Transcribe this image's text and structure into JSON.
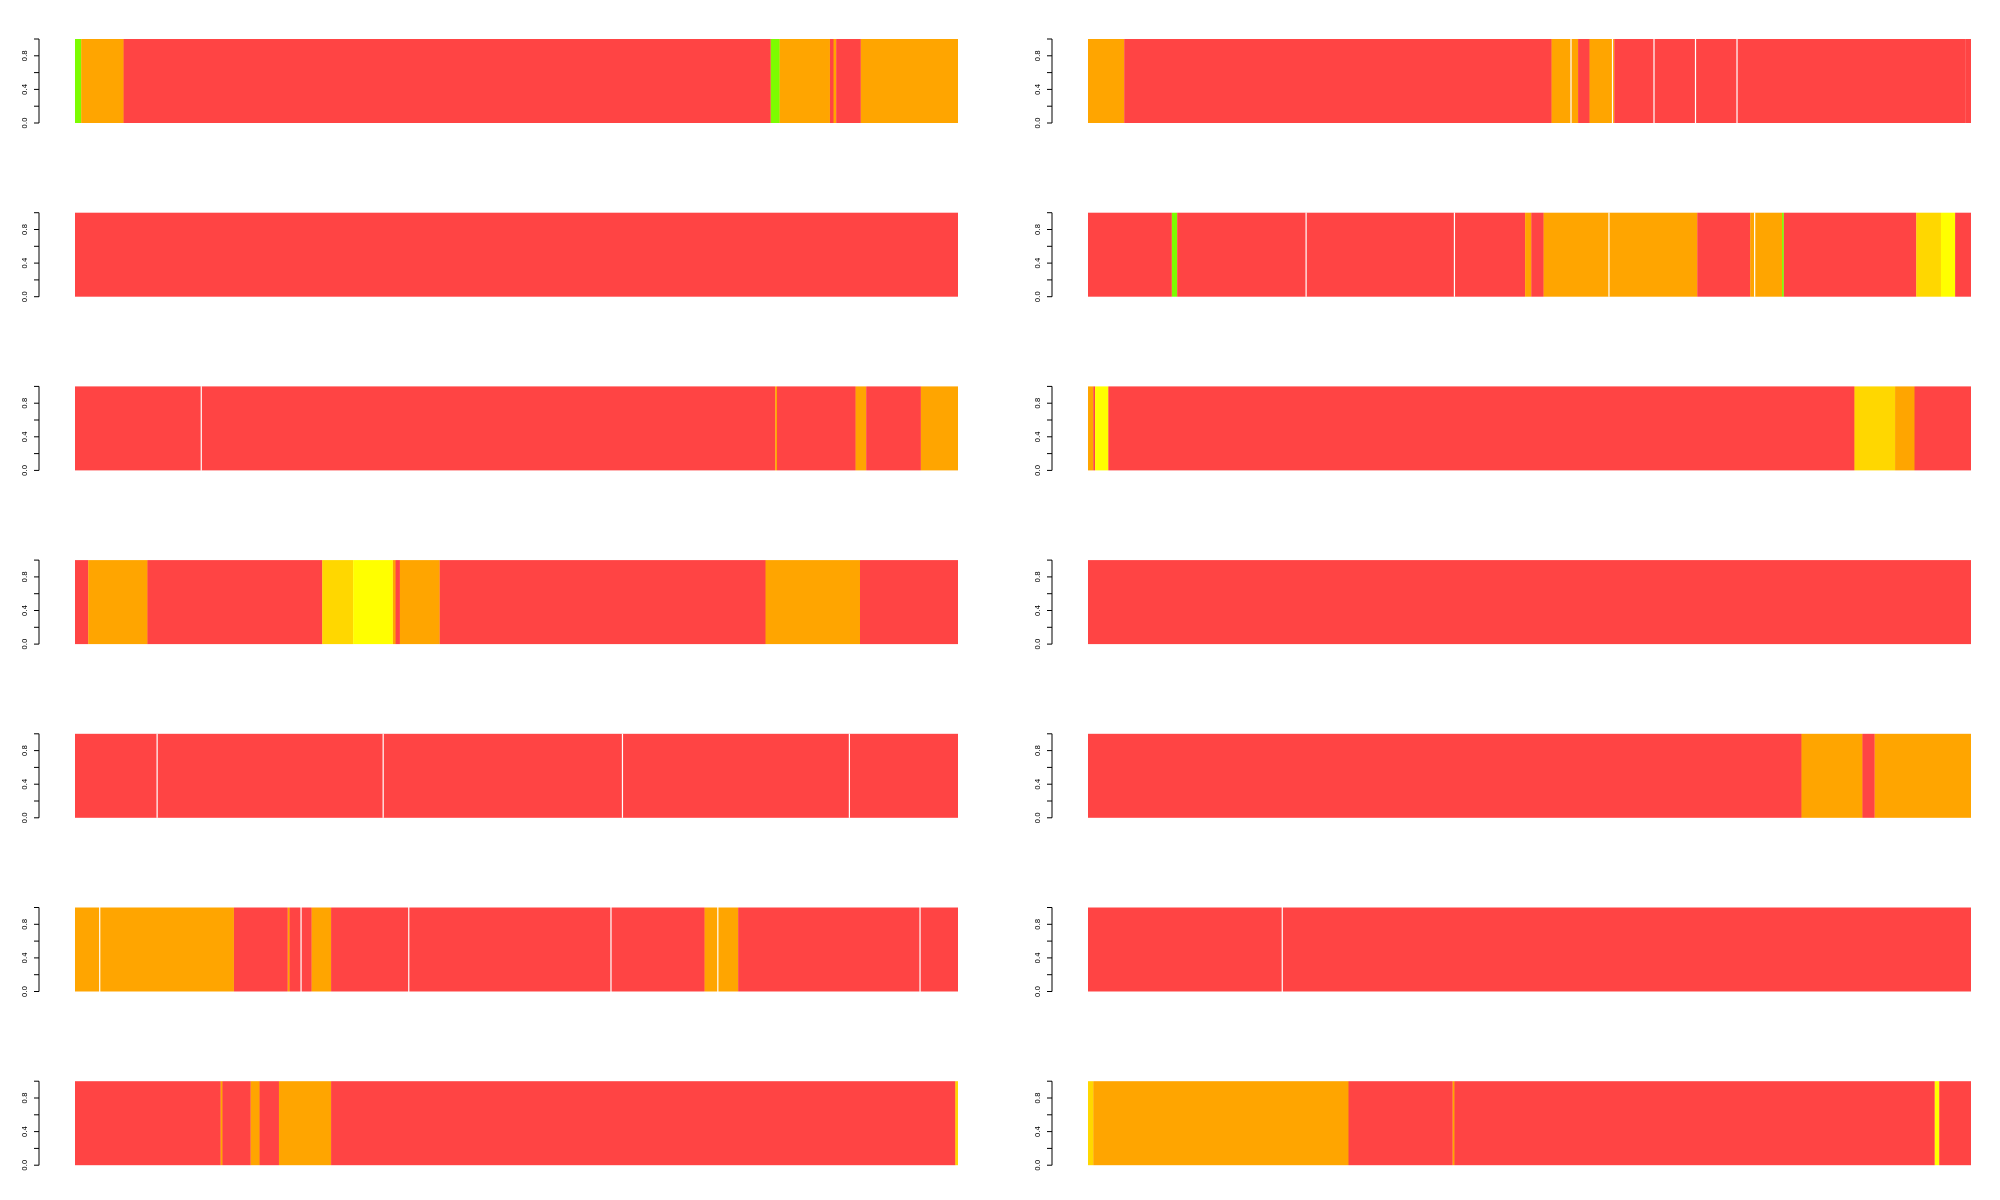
{
  "figure": {
    "colors": {
      "red": "#ff4444",
      "orange": "#ffa500",
      "gold": "#ffd700",
      "yellow": "#ffff00",
      "green": "#7cfc00",
      "separator": "#ffffff",
      "axis": "#000000"
    },
    "y_tick_labels": [
      "0.0",
      "0.4",
      "0.8"
    ]
  },
  "chart_data": [
    {
      "type": "bar",
      "panel": "row-1-left",
      "ylim": [
        0,
        1
      ],
      "yticks": [
        0,
        0.2,
        0.4,
        0.6,
        0.8,
        1.0
      ],
      "ytick_labels": [
        "0.0",
        "0.4",
        "0.8"
      ],
      "segments": [
        {
          "start": 0.0,
          "end": 0.007,
          "color": "green"
        },
        {
          "start": 0.007,
          "end": 0.055,
          "color": "orange"
        },
        {
          "start": 0.055,
          "end": 0.788,
          "color": "red"
        },
        {
          "start": 0.788,
          "end": 0.798,
          "color": "green"
        },
        {
          "start": 0.798,
          "end": 0.855,
          "color": "orange"
        },
        {
          "start": 0.855,
          "end": 0.859,
          "color": "red"
        },
        {
          "start": 0.859,
          "end": 0.862,
          "color": "orange"
        },
        {
          "start": 0.862,
          "end": 0.89,
          "color": "red"
        },
        {
          "start": 0.89,
          "end": 1.0,
          "color": "orange"
        }
      ]
    },
    {
      "type": "bar",
      "panel": "row-1-right",
      "ylim": [
        0,
        1
      ],
      "yticks": [
        0,
        0.2,
        0.4,
        0.6,
        0.8,
        1.0
      ],
      "ytick_labels": [
        "0.0",
        "0.4",
        "0.8"
      ],
      "segments": [
        {
          "start": 0.0,
          "end": 0.041,
          "color": "orange"
        },
        {
          "start": 0.041,
          "end": 0.525,
          "color": "red"
        },
        {
          "start": 0.525,
          "end": 0.555,
          "color": "orange"
        },
        {
          "start": 0.555,
          "end": 0.568,
          "color": "red"
        },
        {
          "start": 0.568,
          "end": 0.596,
          "color": "orange"
        },
        {
          "start": 0.596,
          "end": 0.994,
          "color": "red"
        },
        {
          "start": 0.994,
          "end": 1.0,
          "color": "red"
        }
      ],
      "separators": [
        0.547,
        0.594,
        0.641,
        0.688,
        0.735
      ]
    },
    {
      "type": "bar",
      "panel": "row-2-left",
      "ylim": [
        0,
        1
      ],
      "yticks": [
        0,
        0.2,
        0.4,
        0.6,
        0.8,
        1.0
      ],
      "ytick_labels": [
        "0.0",
        "0.4",
        "0.8"
      ],
      "segments": [
        {
          "start": 0.0,
          "end": 1.0,
          "color": "red"
        }
      ]
    },
    {
      "type": "bar",
      "panel": "row-2-right",
      "ylim": [
        0,
        1
      ],
      "yticks": [
        0,
        0.2,
        0.4,
        0.6,
        0.8,
        1.0
      ],
      "ytick_labels": [
        "0.0",
        "0.4",
        "0.8"
      ],
      "segments": [
        {
          "start": 0.0,
          "end": 0.095,
          "color": "red"
        },
        {
          "start": 0.095,
          "end": 0.101,
          "color": "green"
        },
        {
          "start": 0.101,
          "end": 0.495,
          "color": "red"
        },
        {
          "start": 0.495,
          "end": 0.502,
          "color": "orange"
        },
        {
          "start": 0.502,
          "end": 0.516,
          "color": "red"
        },
        {
          "start": 0.516,
          "end": 0.69,
          "color": "orange"
        },
        {
          "start": 0.69,
          "end": 0.75,
          "color": "red"
        },
        {
          "start": 0.75,
          "end": 0.786,
          "color": "orange"
        },
        {
          "start": 0.786,
          "end": 0.788,
          "color": "green"
        },
        {
          "start": 0.788,
          "end": 0.938,
          "color": "red"
        },
        {
          "start": 0.938,
          "end": 0.966,
          "color": "gold"
        },
        {
          "start": 0.966,
          "end": 0.982,
          "color": "yellow"
        },
        {
          "start": 0.982,
          "end": 1.0,
          "color": "red"
        }
      ],
      "separators": [
        0.247,
        0.415,
        0.59,
        0.755
      ]
    },
    {
      "type": "bar",
      "panel": "row-3-left",
      "ylim": [
        0,
        1
      ],
      "yticks": [
        0,
        0.2,
        0.4,
        0.6,
        0.8,
        1.0
      ],
      "ytick_labels": [
        "0.0",
        "0.4",
        "0.8"
      ],
      "segments": [
        {
          "start": 0.0,
          "end": 0.793,
          "color": "red"
        },
        {
          "start": 0.793,
          "end": 0.795,
          "color": "orange"
        },
        {
          "start": 0.795,
          "end": 0.884,
          "color": "red"
        },
        {
          "start": 0.884,
          "end": 0.896,
          "color": "orange"
        },
        {
          "start": 0.896,
          "end": 0.958,
          "color": "red"
        },
        {
          "start": 0.958,
          "end": 1.0,
          "color": "orange"
        }
      ],
      "separators": [
        0.143
      ]
    },
    {
      "type": "bar",
      "panel": "row-3-right",
      "ylim": [
        0,
        1
      ],
      "yticks": [
        0,
        0.2,
        0.4,
        0.6,
        0.8,
        1.0
      ],
      "ytick_labels": [
        "0.0",
        "0.4",
        "0.8"
      ],
      "segments": [
        {
          "start": 0.0,
          "end": 0.006,
          "color": "orange"
        },
        {
          "start": 0.006,
          "end": 0.008,
          "color": "red"
        },
        {
          "start": 0.008,
          "end": 0.023,
          "color": "yellow"
        },
        {
          "start": 0.023,
          "end": 0.868,
          "color": "red"
        },
        {
          "start": 0.868,
          "end": 0.914,
          "color": "gold"
        },
        {
          "start": 0.914,
          "end": 0.936,
          "color": "orange"
        },
        {
          "start": 0.936,
          "end": 1.0,
          "color": "red"
        }
      ]
    },
    {
      "type": "bar",
      "panel": "row-4-left",
      "ylim": [
        0,
        1
      ],
      "yticks": [
        0,
        0.2,
        0.4,
        0.6,
        0.8,
        1.0
      ],
      "ytick_labels": [
        "0.0",
        "0.4",
        "0.8"
      ],
      "segments": [
        {
          "start": 0.0,
          "end": 0.015,
          "color": "red"
        },
        {
          "start": 0.015,
          "end": 0.082,
          "color": "orange"
        },
        {
          "start": 0.082,
          "end": 0.28,
          "color": "red"
        },
        {
          "start": 0.28,
          "end": 0.315,
          "color": "gold"
        },
        {
          "start": 0.315,
          "end": 0.36,
          "color": "yellow"
        },
        {
          "start": 0.36,
          "end": 0.363,
          "color": "orange"
        },
        {
          "start": 0.363,
          "end": 0.368,
          "color": "red"
        },
        {
          "start": 0.368,
          "end": 0.413,
          "color": "orange"
        },
        {
          "start": 0.413,
          "end": 0.782,
          "color": "red"
        },
        {
          "start": 0.782,
          "end": 0.889,
          "color": "orange"
        },
        {
          "start": 0.889,
          "end": 1.0,
          "color": "red"
        }
      ]
    },
    {
      "type": "bar",
      "panel": "row-4-right",
      "ylim": [
        0,
        1
      ],
      "yticks": [
        0,
        0.2,
        0.4,
        0.6,
        0.8,
        1.0
      ],
      "ytick_labels": [
        "0.0",
        "0.4",
        "0.8"
      ],
      "segments": [
        {
          "start": 0.0,
          "end": 1.0,
          "color": "red"
        }
      ]
    },
    {
      "type": "bar",
      "panel": "row-5-left",
      "ylim": [
        0,
        1
      ],
      "yticks": [
        0,
        0.2,
        0.4,
        0.6,
        0.8,
        1.0
      ],
      "ytick_labels": [
        "0.0",
        "0.4",
        "0.8"
      ],
      "segments": [
        {
          "start": 0.0,
          "end": 1.0,
          "color": "red"
        }
      ],
      "separators": [
        0.093,
        0.349,
        0.62,
        0.877
      ]
    },
    {
      "type": "bar",
      "panel": "row-5-right",
      "ylim": [
        0,
        1
      ],
      "yticks": [
        0,
        0.2,
        0.4,
        0.6,
        0.8,
        1.0
      ],
      "ytick_labels": [
        "0.0",
        "0.4",
        "0.8"
      ],
      "segments": [
        {
          "start": 0.0,
          "end": 0.808,
          "color": "red"
        },
        {
          "start": 0.808,
          "end": 0.877,
          "color": "orange"
        },
        {
          "start": 0.877,
          "end": 0.891,
          "color": "red"
        },
        {
          "start": 0.891,
          "end": 1.0,
          "color": "orange"
        }
      ]
    },
    {
      "type": "bar",
      "panel": "row-6-left",
      "ylim": [
        0,
        1
      ],
      "yticks": [
        0,
        0.2,
        0.4,
        0.6,
        0.8,
        1.0
      ],
      "ytick_labels": [
        "0.0",
        "0.4",
        "0.8"
      ],
      "segments": [
        {
          "start": 0.0,
          "end": 0.18,
          "color": "orange"
        },
        {
          "start": 0.18,
          "end": 0.241,
          "color": "red"
        },
        {
          "start": 0.241,
          "end": 0.243,
          "color": "orange"
        },
        {
          "start": 0.243,
          "end": 0.256,
          "color": "red"
        },
        {
          "start": 0.256,
          "end": 0.268,
          "color": "red"
        },
        {
          "start": 0.268,
          "end": 0.29,
          "color": "orange"
        },
        {
          "start": 0.29,
          "end": 0.713,
          "color": "red"
        },
        {
          "start": 0.713,
          "end": 0.751,
          "color": "orange"
        },
        {
          "start": 0.751,
          "end": 1.0,
          "color": "red"
        }
      ],
      "separators": [
        0.028,
        0.256,
        0.378,
        0.607,
        0.728,
        0.957
      ]
    },
    {
      "type": "bar",
      "panel": "row-6-right",
      "ylim": [
        0,
        1
      ],
      "yticks": [
        0,
        0.2,
        0.4,
        0.6,
        0.8,
        1.0
      ],
      "ytick_labels": [
        "0.0",
        "0.4",
        "0.8"
      ],
      "segments": [
        {
          "start": 0.0,
          "end": 1.0,
          "color": "red"
        }
      ],
      "separators": [
        0.22
      ]
    },
    {
      "type": "bar",
      "panel": "row-7-left",
      "ylim": [
        0,
        1
      ],
      "yticks": [
        0,
        0.2,
        0.4,
        0.6,
        0.8,
        1.0
      ],
      "ytick_labels": [
        "0.0",
        "0.4",
        "0.8"
      ],
      "segments": [
        {
          "start": 0.0,
          "end": 0.165,
          "color": "red"
        },
        {
          "start": 0.165,
          "end": 0.167,
          "color": "orange"
        },
        {
          "start": 0.167,
          "end": 0.199,
          "color": "red"
        },
        {
          "start": 0.199,
          "end": 0.209,
          "color": "orange"
        },
        {
          "start": 0.209,
          "end": 0.231,
          "color": "red"
        },
        {
          "start": 0.231,
          "end": 0.29,
          "color": "orange"
        },
        {
          "start": 0.29,
          "end": 0.997,
          "color": "red"
        },
        {
          "start": 0.997,
          "end": 1.0,
          "color": "gold"
        }
      ]
    },
    {
      "type": "bar",
      "panel": "row-7-right",
      "ylim": [
        0,
        1
      ],
      "yticks": [
        0,
        0.2,
        0.4,
        0.6,
        0.8,
        1.0
      ],
      "ytick_labels": [
        "0.0",
        "0.4",
        "0.8"
      ],
      "segments": [
        {
          "start": 0.0,
          "end": 0.006,
          "color": "gold"
        },
        {
          "start": 0.006,
          "end": 0.295,
          "color": "orange"
        },
        {
          "start": 0.295,
          "end": 0.413,
          "color": "red"
        },
        {
          "start": 0.413,
          "end": 0.415,
          "color": "orange"
        },
        {
          "start": 0.415,
          "end": 0.959,
          "color": "red"
        },
        {
          "start": 0.959,
          "end": 0.964,
          "color": "yellow"
        },
        {
          "start": 0.964,
          "end": 1.0,
          "color": "red"
        }
      ]
    }
  ]
}
